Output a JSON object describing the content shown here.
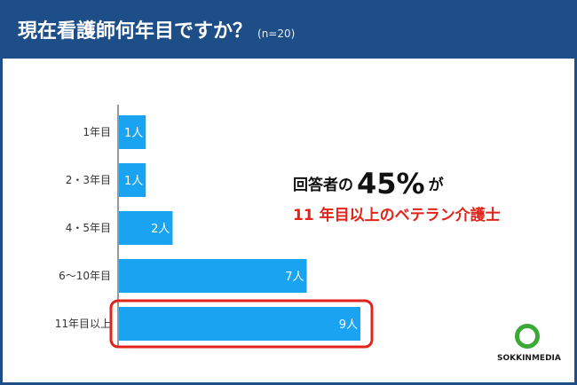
{
  "header": {
    "title": "現在看護師何年目ですか？",
    "subtitle": "(n=20)"
  },
  "chart_data": {
    "type": "bar",
    "orientation": "horizontal",
    "categories": [
      "1年目",
      "2・3年目",
      "4・5年目",
      "6〜10年目",
      "11年目以上"
    ],
    "values": [
      1,
      1,
      2,
      7,
      9
    ],
    "data_labels": [
      "1人",
      "1人",
      "2人",
      "7人",
      "9人"
    ],
    "highlighted_category": "11年目以上",
    "bar_color": "#1aa3f0",
    "highlight_color": "#e2231a"
  },
  "callout": {
    "line1_prefix": "回答者の",
    "line1_value": "45%",
    "line1_suffix": "が",
    "line2": "11 年目以上のベテラン介護士"
  },
  "logo": {
    "text": "SOKKINMEDIA",
    "colors": {
      "ring": "#3ba935"
    }
  },
  "colors": {
    "header_bg": "#1d4e88",
    "bar": "#1aa3f0",
    "highlight": "#e2231a"
  }
}
